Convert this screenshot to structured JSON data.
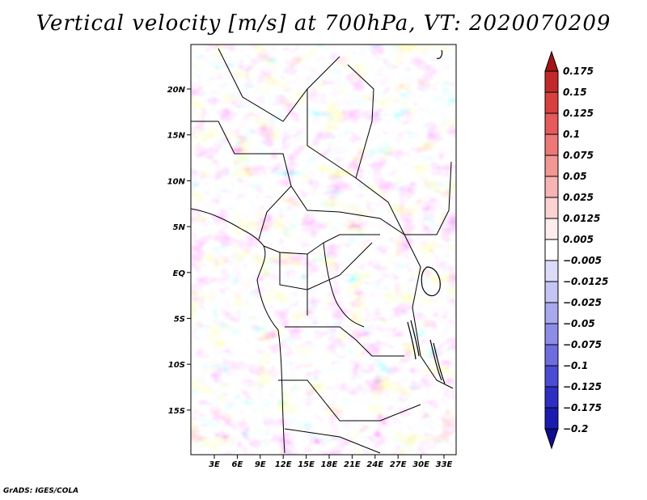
{
  "title": "Vertical velocity [m/s] at 700hPa, VT: 2020070209",
  "credit": "GrADS: IGES/COLA",
  "map": {
    "lat_labels": [
      "20N",
      "15N",
      "10N",
      "5N",
      "EQ",
      "5S",
      "10S",
      "15S"
    ],
    "lon_labels": [
      "3E",
      "6E",
      "9E",
      "12E",
      "15E",
      "18E",
      "21E",
      "24E",
      "27E",
      "30E",
      "33E"
    ]
  },
  "colorbar": {
    "levels": [
      "0.175",
      "0.15",
      "0.125",
      "0.1",
      "0.075",
      "0.05",
      "0.025",
      "0.0125",
      "0.005",
      "−0.005",
      "−0.0125",
      "−0.025",
      "−0.05",
      "−0.075",
      "−0.1",
      "−0.125",
      "−0.175",
      "−0.2"
    ],
    "colors": [
      "#a51515",
      "#c22a2a",
      "#d84040",
      "#e55a5a",
      "#ee7878",
      "#f39696",
      "#f7b4b4",
      "#fad2d2",
      "#fdecec",
      "#ffffff",
      "#dcdcfa",
      "#c4c4f5",
      "#a9a9ef",
      "#8d8de8",
      "#6d6de0",
      "#4b4bd3",
      "#2e2ec3",
      "#1b1bb0",
      "#0e0e8f"
    ]
  }
}
